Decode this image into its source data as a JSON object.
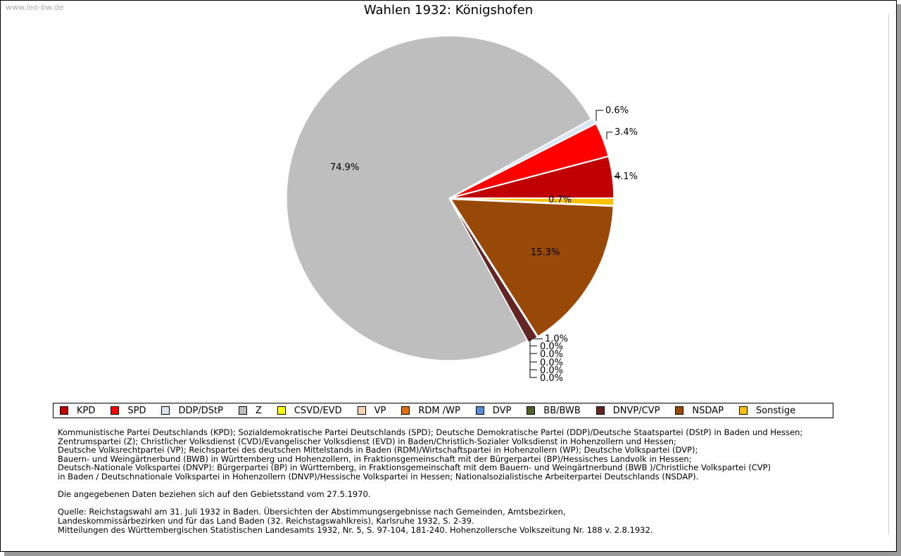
{
  "watermark": "www.leo-bw.de",
  "chart_data": {
    "type": "pie",
    "title": "Wahlen 1932: Königshofen",
    "slices": [
      {
        "label": "KPD",
        "value": 4.1,
        "color": "#c00000",
        "text": "4.1%"
      },
      {
        "label": "SPD",
        "value": 3.4,
        "color": "#ff0000",
        "text": "3.4%"
      },
      {
        "label": "DDP/DStP",
        "value": 0.6,
        "color": "#dce6f2",
        "text": "0.6%"
      },
      {
        "label": "Z",
        "value": 74.9,
        "color": "#bebebe",
        "text": "74.9%"
      },
      {
        "label": "CSVD/EVD",
        "value": 0.0,
        "color": "#ffff00",
        "text": "0.0%"
      },
      {
        "label": "VP",
        "value": 0.0,
        "color": "#fcd5b5",
        "text": "0.0%"
      },
      {
        "label": "RDM /WP",
        "value": 0.0,
        "color": "#e46c0a",
        "text": "0.0%"
      },
      {
        "label": "DVP",
        "value": 0.0,
        "color": "#558ed5",
        "text": "0.0%"
      },
      {
        "label": "BB/BWB",
        "value": 0.0,
        "color": "#4f6228",
        "text": "0.0%"
      },
      {
        "label": "DNVP/CVP",
        "value": 1.0,
        "color": "#632523",
        "text": "1.0%"
      },
      {
        "label": "NSDAP",
        "value": 15.3,
        "color": "#984807",
        "text": "15.3%"
      },
      {
        "label": "Sonstige",
        "value": 0.7,
        "color": "#ffc000",
        "text": "0.7%"
      }
    ],
    "legend_position": "bottom"
  },
  "notes": [
    "Kommunistische Partei Deutschlands (KPD); Sozialdemokratische Partei Deutschlands (SPD); Deutsche Demokratische Partei (DDP)/Deutsche Staatspartei (DStP) in Baden und Hessen;",
    "Zentrumspartei (Z); Christlicher Volksdienst (CVD)/Evangelischer Volksdienst (EVD) in Baden/Christlich-Sozialer Volksdienst in Hohenzollern und Hessen;",
    "Deutsche Volksrechtpartei (VP); Reichspartei des deutschen Mittelstands in Baden (RDM)/Wirtschaftspartei in Hohenzollern (WP); Deutsche Volkspartei (DVP);",
    "Bauern- und Weingärtnerbund (BWB) in Württemberg und Hohenzollern, in Fraktionsgemeinschaft mit der Bürgerpartei (BP)/Hessisches Landvolk in Hessen;",
    "Deutsch-Nationale Volkspartei (DNVP): Bürgerpartei (BP) in Württemberg, in Fraktionsgemeinschaft mit dem Bauern- und Weingärtnerbund (BWB )/Christliche Volkspartei (CVP)",
    "in Baden / Deutschnationale Volkspartei in Hohenzollern (DNVP)/Hessische Volkspartei in Hessen; Nationalsozialistische Arbeiterpartei Deutschlands (NSDAP).",
    "",
    "Die angegebenen Daten beziehen sich auf den Gebietsstand vom 27.5.1970.",
    "",
    "Quelle: Reichstagswahl am 31. Juli 1932 in Baden. Übersichten der Abstimmungsergebnisse nach Gemeinden, Amtsbezirken,",
    "Landeskommissärbezirken und für das Land Baden (32. Reichstagswahlkreis), Karlsruhe 1932, S. 2-39.",
    "Mitteilungen des Württembergischen Statistischen Landesamts 1932, Nr. 5, S. 97-104, 181-240. Hohenzollersche Volkszeitung Nr. 188 v. 2.8.1932."
  ]
}
